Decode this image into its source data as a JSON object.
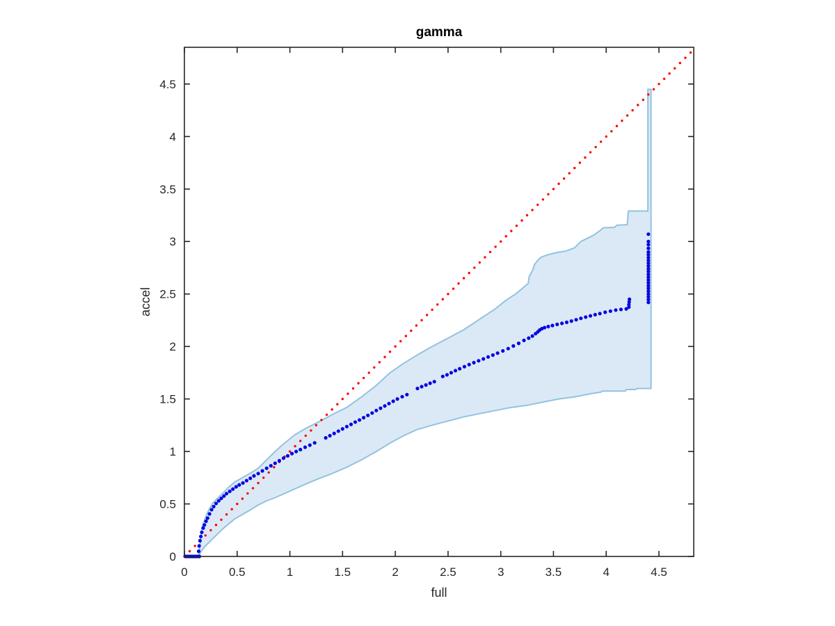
{
  "chart_data": {
    "type": "scatter",
    "title": "gamma",
    "xlabel": "full",
    "ylabel": "accel",
    "xlim": [
      0,
      4.83
    ],
    "ylim": [
      0,
      4.85
    ],
    "grid": false,
    "legend": "none",
    "axes_color": "#262626",
    "xticks": {
      "values": [
        0,
        0.5,
        1,
        1.5,
        2,
        2.5,
        3,
        3.5,
        4,
        4.5
      ],
      "labels": [
        "0",
        "0.5",
        "1",
        "1.5",
        "2",
        "2.5",
        "3",
        "3.5",
        "4",
        "4.5"
      ]
    },
    "yticks": {
      "values": [
        0,
        0.5,
        1,
        1.5,
        2,
        2.5,
        3,
        3.5,
        4,
        4.5
      ],
      "labels": [
        "0",
        "0.5",
        "1",
        "1.5",
        "2",
        "2.5",
        "3",
        "3.5",
        "4",
        "4.5"
      ]
    },
    "band": {
      "name": "confidence-band",
      "fill": "#dbe9f6",
      "edge": "#92c2e0",
      "edge_width": 2,
      "lower": [
        [
          0.135,
          0.0
        ],
        [
          0.16,
          0.05
        ],
        [
          0.19,
          0.09
        ],
        [
          0.23,
          0.13
        ],
        [
          0.27,
          0.17
        ],
        [
          0.31,
          0.21
        ],
        [
          0.36,
          0.26
        ],
        [
          0.42,
          0.31
        ],
        [
          0.48,
          0.36
        ],
        [
          0.55,
          0.4
        ],
        [
          0.62,
          0.44
        ],
        [
          0.7,
          0.49
        ],
        [
          0.78,
          0.53
        ],
        [
          0.86,
          0.56
        ],
        [
          0.95,
          0.6
        ],
        [
          1.05,
          0.645
        ],
        [
          1.15,
          0.69
        ],
        [
          1.27,
          0.74
        ],
        [
          1.4,
          0.79
        ],
        [
          1.54,
          0.85
        ],
        [
          1.68,
          0.92
        ],
        [
          1.82,
          1.0
        ],
        [
          1.95,
          1.08
        ],
        [
          2.08,
          1.15
        ],
        [
          2.21,
          1.21
        ],
        [
          2.35,
          1.25
        ],
        [
          2.5,
          1.29
        ],
        [
          2.65,
          1.33
        ],
        [
          2.8,
          1.36
        ],
        [
          2.95,
          1.39
        ],
        [
          3.1,
          1.42
        ],
        [
          3.25,
          1.44
        ],
        [
          3.4,
          1.47
        ],
        [
          3.55,
          1.5
        ],
        [
          3.7,
          1.52
        ],
        [
          3.85,
          1.55
        ],
        [
          3.95,
          1.565
        ],
        [
          3.96,
          1.575
        ],
        [
          4.18,
          1.575
        ],
        [
          4.19,
          1.59
        ],
        [
          4.28,
          1.59
        ],
        [
          4.29,
          1.6
        ],
        [
          4.425,
          1.6
        ]
      ],
      "upper": [
        [
          0.135,
          0.0
        ],
        [
          0.15,
          0.13
        ],
        [
          0.165,
          0.27
        ],
        [
          0.185,
          0.33
        ],
        [
          0.21,
          0.4
        ],
        [
          0.24,
          0.46
        ],
        [
          0.27,
          0.51
        ],
        [
          0.31,
          0.55
        ],
        [
          0.36,
          0.6
        ],
        [
          0.42,
          0.66
        ],
        [
          0.48,
          0.71
        ],
        [
          0.55,
          0.75
        ],
        [
          0.62,
          0.79
        ],
        [
          0.7,
          0.84
        ],
        [
          0.78,
          0.92
        ],
        [
          0.86,
          1.0
        ],
        [
          0.95,
          1.08
        ],
        [
          1.05,
          1.16
        ],
        [
          1.15,
          1.22
        ],
        [
          1.27,
          1.28
        ],
        [
          1.4,
          1.35
        ],
        [
          1.54,
          1.42
        ],
        [
          1.68,
          1.52
        ],
        [
          1.82,
          1.63
        ],
        [
          1.95,
          1.75
        ],
        [
          2.08,
          1.84
        ],
        [
          2.21,
          1.92
        ],
        [
          2.35,
          2.0
        ],
        [
          2.5,
          2.08
        ],
        [
          2.65,
          2.16
        ],
        [
          2.8,
          2.26
        ],
        [
          2.95,
          2.36
        ],
        [
          3.05,
          2.44
        ],
        [
          3.14,
          2.5
        ],
        [
          3.2,
          2.55
        ],
        [
          3.26,
          2.6
        ],
        [
          3.27,
          2.67
        ],
        [
          3.3,
          2.72
        ],
        [
          3.32,
          2.78
        ],
        [
          3.35,
          2.82
        ],
        [
          3.38,
          2.85
        ],
        [
          3.45,
          2.875
        ],
        [
          3.53,
          2.895
        ],
        [
          3.62,
          2.91
        ],
        [
          3.7,
          2.94
        ],
        [
          3.76,
          3.0
        ],
        [
          3.82,
          3.03
        ],
        [
          3.88,
          3.06
        ],
        [
          3.95,
          3.11
        ],
        [
          3.97,
          3.13
        ],
        [
          4.08,
          3.135
        ],
        [
          4.1,
          3.155
        ],
        [
          4.2,
          3.16
        ],
        [
          4.21,
          3.29
        ],
        [
          4.395,
          3.29
        ],
        [
          4.395,
          4.45
        ],
        [
          4.425,
          4.45
        ]
      ]
    },
    "reference_line": {
      "name": "identity-line",
      "style": "dotted",
      "color": "#ff0000",
      "from": [
        0,
        0
      ],
      "to": [
        4.82,
        4.82
      ],
      "dot_spacing": 0.05,
      "dot_radius": 1.7
    },
    "scatter": {
      "name": "qq-points",
      "color": "#0808e0",
      "dot_radius": 2.6,
      "points": [
        [
          0.01,
          0
        ],
        [
          0.025,
          0
        ],
        [
          0.04,
          0
        ],
        [
          0.055,
          0
        ],
        [
          0.07,
          0
        ],
        [
          0.085,
          0
        ],
        [
          0.1,
          0
        ],
        [
          0.115,
          0
        ],
        [
          0.13,
          0
        ],
        [
          0.142,
          0
        ],
        [
          0.135,
          0.05
        ],
        [
          0.14,
          0.1
        ],
        [
          0.148,
          0.15
        ],
        [
          0.156,
          0.19
        ],
        [
          0.165,
          0.23
        ],
        [
          0.178,
          0.27
        ],
        [
          0.19,
          0.3
        ],
        [
          0.205,
          0.335
        ],
        [
          0.22,
          0.365
        ],
        [
          0.238,
          0.405
        ],
        [
          0.258,
          0.445
        ],
        [
          0.278,
          0.475
        ],
        [
          0.3,
          0.505
        ],
        [
          0.325,
          0.53
        ],
        [
          0.35,
          0.553
        ],
        [
          0.375,
          0.576
        ],
        [
          0.4,
          0.598
        ],
        [
          0.43,
          0.62
        ],
        [
          0.46,
          0.642
        ],
        [
          0.49,
          0.663
        ],
        [
          0.52,
          0.682
        ],
        [
          0.555,
          0.7
        ],
        [
          0.59,
          0.722
        ],
        [
          0.625,
          0.745
        ],
        [
          0.66,
          0.768
        ],
        [
          0.7,
          0.79
        ],
        [
          0.74,
          0.815
        ],
        [
          0.78,
          0.84
        ],
        [
          0.82,
          0.864
        ],
        [
          0.86,
          0.888
        ],
        [
          0.9,
          0.912
        ],
        [
          0.94,
          0.936
        ],
        [
          0.98,
          0.958
        ],
        [
          1.02,
          0.98
        ],
        [
          1.06,
          1.0
        ],
        [
          1.1,
          1.018
        ],
        [
          1.145,
          1.04
        ],
        [
          1.19,
          1.06
        ],
        [
          1.235,
          1.082
        ],
        [
          1.34,
          1.13
        ],
        [
          1.38,
          1.15
        ],
        [
          1.42,
          1.172
        ],
        [
          1.46,
          1.194
        ],
        [
          1.5,
          1.215
        ],
        [
          1.54,
          1.237
        ],
        [
          1.58,
          1.258
        ],
        [
          1.62,
          1.28
        ],
        [
          1.66,
          1.3
        ],
        [
          1.7,
          1.322
        ],
        [
          1.74,
          1.344
        ],
        [
          1.78,
          1.366
        ],
        [
          1.82,
          1.39
        ],
        [
          1.86,
          1.412
        ],
        [
          1.9,
          1.434
        ],
        [
          1.94,
          1.456
        ],
        [
          1.98,
          1.478
        ],
        [
          2.02,
          1.5
        ],
        [
          2.065,
          1.522
        ],
        [
          2.11,
          1.542
        ],
        [
          2.21,
          1.6
        ],
        [
          2.25,
          1.617
        ],
        [
          2.29,
          1.633
        ],
        [
          2.33,
          1.65
        ],
        [
          2.37,
          1.665
        ],
        [
          2.45,
          1.715
        ],
        [
          2.49,
          1.73
        ],
        [
          2.53,
          1.75
        ],
        [
          2.57,
          1.77
        ],
        [
          2.61,
          1.788
        ],
        [
          2.655,
          1.808
        ],
        [
          2.7,
          1.828
        ],
        [
          2.745,
          1.846
        ],
        [
          2.79,
          1.864
        ],
        [
          2.835,
          1.882
        ],
        [
          2.88,
          1.9
        ],
        [
          2.925,
          1.918
        ],
        [
          2.97,
          1.937
        ],
        [
          3.02,
          1.958
        ],
        [
          3.07,
          1.98
        ],
        [
          3.12,
          2.005
        ],
        [
          3.17,
          2.03
        ],
        [
          3.22,
          2.058
        ],
        [
          3.265,
          2.08
        ],
        [
          3.3,
          2.1
        ],
        [
          3.33,
          2.122
        ],
        [
          3.352,
          2.14
        ],
        [
          3.37,
          2.157
        ],
        [
          3.39,
          2.17
        ],
        [
          3.415,
          2.18
        ],
        [
          3.45,
          2.19
        ],
        [
          3.49,
          2.2
        ],
        [
          3.535,
          2.21
        ],
        [
          3.58,
          2.22
        ],
        [
          3.625,
          2.23
        ],
        [
          3.67,
          2.242
        ],
        [
          3.715,
          2.255
        ],
        [
          3.76,
          2.268
        ],
        [
          3.805,
          2.28
        ],
        [
          3.85,
          2.292
        ],
        [
          3.895,
          2.303
        ],
        [
          3.94,
          2.314
        ],
        [
          3.99,
          2.326
        ],
        [
          4.04,
          2.337
        ],
        [
          4.09,
          2.347
        ],
        [
          4.14,
          2.353
        ],
        [
          4.19,
          2.358
        ],
        [
          4.215,
          2.375
        ],
        [
          4.215,
          2.4
        ],
        [
          4.218,
          2.425
        ],
        [
          4.22,
          2.45
        ],
        [
          4.4,
          2.42
        ],
        [
          4.4,
          2.447
        ],
        [
          4.4,
          2.474
        ],
        [
          4.4,
          2.5
        ],
        [
          4.4,
          2.527
        ],
        [
          4.4,
          2.554
        ],
        [
          4.4,
          2.58
        ],
        [
          4.4,
          2.607
        ],
        [
          4.4,
          2.634
        ],
        [
          4.4,
          2.66
        ],
        [
          4.4,
          2.687
        ],
        [
          4.4,
          2.714
        ],
        [
          4.4,
          2.74
        ],
        [
          4.4,
          2.767
        ],
        [
          4.4,
          2.794
        ],
        [
          4.4,
          2.82
        ],
        [
          4.4,
          2.847
        ],
        [
          4.4,
          2.874
        ],
        [
          4.4,
          2.9
        ],
        [
          4.4,
          2.935
        ],
        [
          4.4,
          2.97
        ],
        [
          4.4,
          3.0
        ],
        [
          4.4,
          3.07
        ]
      ]
    }
  }
}
